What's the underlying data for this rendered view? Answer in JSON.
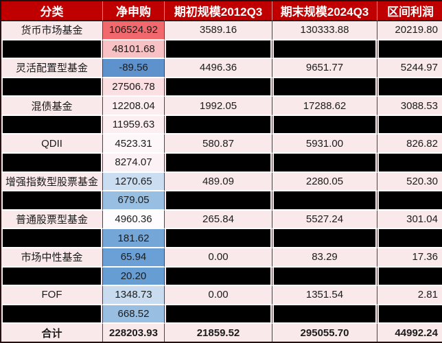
{
  "chart_data": {
    "type": "table",
    "columns": [
      "分类",
      "净申购",
      "期初规模2012Q3",
      "期末规模2024Q3",
      "区间利润"
    ],
    "rows": [
      {
        "category": "货币市场基金",
        "redacted": false,
        "net": "106524.92",
        "net_bg": "#F1696D",
        "begin": "3589.16",
        "end": "130333.88",
        "profit": "20219.80",
        "total": false
      },
      {
        "category": null,
        "redacted": true,
        "net": "48101.68",
        "net_bg": "#F8C1C4",
        "begin": null,
        "end": null,
        "profit": null,
        "total": false
      },
      {
        "category": "灵活配置型基金",
        "redacted": false,
        "net": "-89.56",
        "net_bg": "#5D92CC",
        "begin": "4496.36",
        "end": "9651.77",
        "profit": "5244.97",
        "total": false
      },
      {
        "category": null,
        "redacted": true,
        "net": "27506.78",
        "net_bg": "#FBDFE2",
        "begin": null,
        "end": null,
        "profit": null,
        "total": false
      },
      {
        "category": "混债基金",
        "redacted": false,
        "net": "12208.04",
        "net_bg": "#FCEDF0",
        "begin": "1992.05",
        "end": "17288.62",
        "profit": "3088.53",
        "total": false
      },
      {
        "category": null,
        "redacted": true,
        "net": "11959.63",
        "net_bg": "#FCEEF1",
        "begin": null,
        "end": null,
        "profit": null,
        "total": false
      },
      {
        "category": "QDII",
        "redacted": false,
        "net": "4523.31",
        "net_bg": "#FDF7FA",
        "begin": "580.87",
        "end": "5931.00",
        "profit": "826.82",
        "total": false
      },
      {
        "category": null,
        "redacted": true,
        "net": "8274.07",
        "net_bg": "#FCF1F4",
        "begin": null,
        "end": null,
        "profit": null,
        "total": false
      },
      {
        "category": "增强指数型股票基金",
        "redacted": false,
        "net": "1270.65",
        "net_bg": "#CBDDF0",
        "begin": "489.09",
        "end": "2280.05",
        "profit": "520.30",
        "total": false
      },
      {
        "category": null,
        "redacted": true,
        "net": "679.05",
        "net_bg": "#98BEE2",
        "begin": null,
        "end": null,
        "profit": null,
        "total": false
      },
      {
        "category": "普通股票型基金",
        "redacted": false,
        "net": "4960.36",
        "net_bg": "#FEFCFF",
        "begin": "265.84",
        "end": "5527.24",
        "profit": "301.04",
        "total": false
      },
      {
        "category": null,
        "redacted": true,
        "net": "181.62",
        "net_bg": "#74A6D8",
        "begin": null,
        "end": null,
        "profit": null,
        "total": false
      },
      {
        "category": "市场中性基金",
        "redacted": false,
        "net": "65.94",
        "net_bg": "#6AA0D5",
        "begin": "0.00",
        "end": "83.29",
        "profit": "17.36",
        "total": false
      },
      {
        "category": null,
        "redacted": true,
        "net": "20.20",
        "net_bg": "#669DD3",
        "begin": null,
        "end": null,
        "profit": null,
        "total": false
      },
      {
        "category": "FOF",
        "redacted": false,
        "net": "1348.73",
        "net_bg": "#C8DBEF",
        "begin": "0.00",
        "end": "1351.54",
        "profit": "2.81",
        "total": false
      },
      {
        "category": null,
        "redacted": true,
        "net": "668.52",
        "net_bg": "#98BEE2",
        "begin": null,
        "end": null,
        "profit": null,
        "total": false
      },
      {
        "category": "合计",
        "redacted": false,
        "net": "228203.93",
        "net_bg": "#FAE9EA",
        "begin": "21859.52",
        "end": "295055.70",
        "profit": "44992.24",
        "total": true
      }
    ],
    "net_color_scale": {
      "low": "#5D92CC",
      "mid": "#FCFCFF",
      "high": "#F1696D"
    },
    "notes": "rows with redacted=true show black censor bars over category, begin-scale, end-scale and profit cells; only the net-subscription value is visible"
  },
  "colors": {
    "header_bg": "#C00000",
    "header_text": "#FFFFFF",
    "cell_bg": "#FAE9EA",
    "cell_text": "#1B1B1B",
    "vertical_border": "#454545",
    "horizontal_border": "#FFFFFF",
    "censor_bar": "#000000"
  }
}
